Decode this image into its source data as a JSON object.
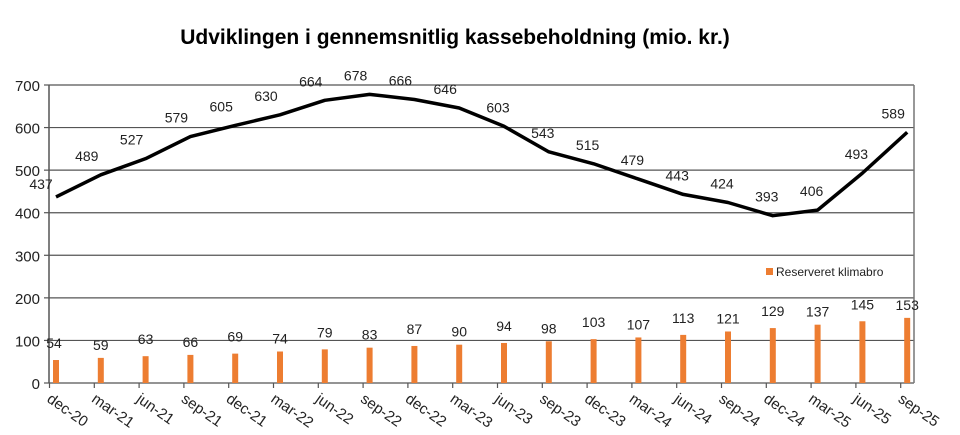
{
  "chart_data": {
    "type": "bar+line",
    "title": "Udviklingen i gennemsnitlig kassebeholdning (mio. kr.)",
    "categories": [
      "dec-20",
      "mar-21",
      "jun-21",
      "sep-21",
      "dec-21",
      "mar-22",
      "jun-22",
      "sep-22",
      "dec-22",
      "mar-23",
      "jun-23",
      "sep-23",
      "dec-23",
      "mar-24",
      "jun-24",
      "sep-24",
      "dec-24",
      "mar-25",
      "jun-25",
      "sep-25"
    ],
    "series": [
      {
        "name": "Kassebeholdning",
        "type": "line",
        "color": "#000000",
        "values": [
          437,
          489,
          527,
          579,
          605,
          630,
          664,
          678,
          666,
          646,
          603,
          543,
          515,
          479,
          443,
          424,
          393,
          406,
          493,
          589
        ]
      },
      {
        "name": "Reserveret klimabro",
        "type": "bar",
        "color": "#ED7D31",
        "values": [
          54,
          59,
          63,
          66,
          69,
          74,
          79,
          83,
          87,
          90,
          94,
          98,
          103,
          107,
          113,
          121,
          129,
          137,
          145,
          153
        ]
      }
    ],
    "legend": {
      "entries": [
        "Reserveret klimabro"
      ],
      "placement": "right-middle"
    },
    "yticks": [
      "0",
      "100",
      "200",
      "300",
      "400",
      "500",
      "600",
      "700"
    ],
    "ylim": [
      0,
      700
    ],
    "grid": true,
    "xlabel": "",
    "ylabel": ""
  }
}
